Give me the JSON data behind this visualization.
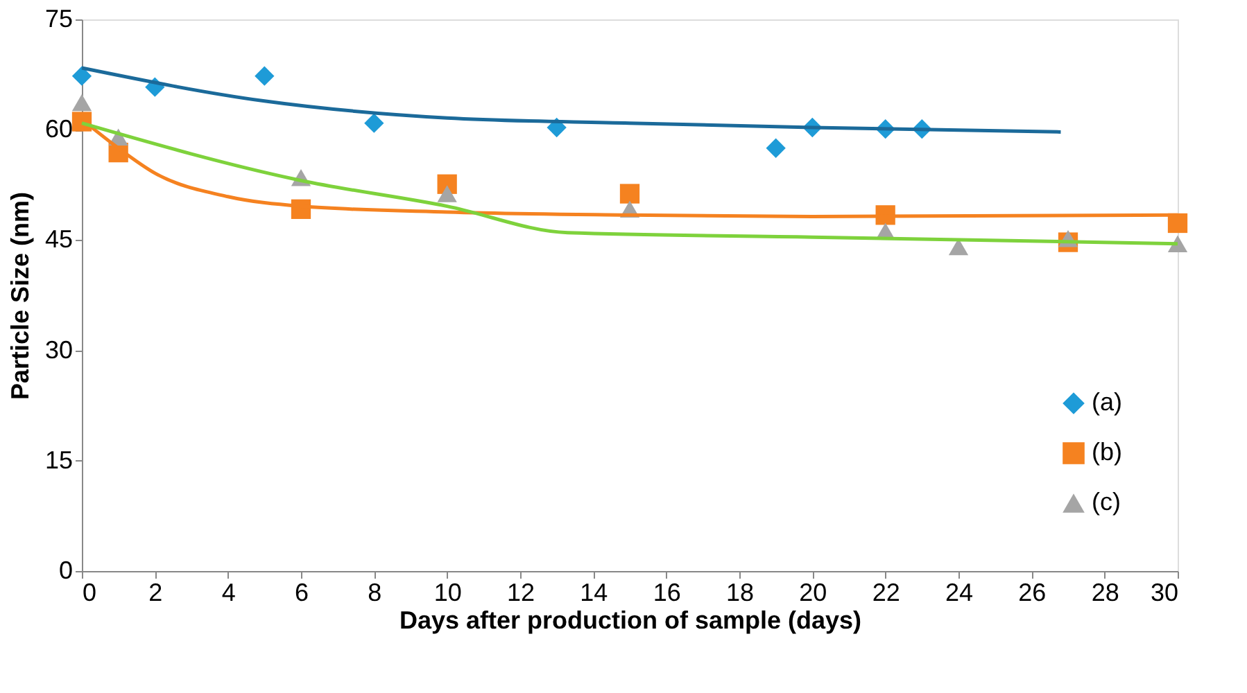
{
  "chart_data": {
    "type": "scatter",
    "xlabel": "Days after production of sample (days)",
    "ylabel": "Particle Size (nm)",
    "xlim": [
      0,
      30
    ],
    "xticks": [
      0,
      2,
      4,
      6,
      8,
      10,
      12,
      14,
      16,
      18,
      20,
      22,
      24,
      26,
      28,
      30
    ],
    "ylim": [
      0,
      75
    ],
    "yticks": [
      0,
      15,
      30,
      45,
      60,
      75
    ],
    "grid": false,
    "legend": "bottom right",
    "series": [
      {
        "name": "(a)",
        "marker": "diamond",
        "color": "#1e9bd7",
        "x": [
          0,
          2,
          5,
          8,
          13,
          19,
          20,
          22,
          23
        ],
        "values": [
          67.3,
          65.8,
          67.3,
          60.9,
          60.3,
          57.5,
          60.3,
          60.1,
          60.1
        ]
      },
      {
        "name": "(b)",
        "marker": "square",
        "color": "#f58220",
        "x": [
          0,
          1,
          6,
          10,
          15,
          22,
          27,
          30
        ],
        "values": [
          61.1,
          56.9,
          49.2,
          52.6,
          51.3,
          48.4,
          44.7,
          47.3
        ]
      },
      {
        "name": "(c)",
        "marker": "triangle",
        "color": "#a5a5a5",
        "x": [
          0,
          1,
          6,
          10,
          15,
          22,
          24,
          27,
          30
        ],
        "values": [
          63.7,
          59.0,
          53.5,
          51.3,
          49.2,
          46.2,
          44.1,
          45.2,
          44.5
        ]
      },
      {
        "type": "line",
        "marker": "none",
        "line_style": "solid",
        "color": "#1b6a9a",
        "x": [
          0,
          5,
          10,
          15,
          20,
          26.8
        ],
        "values": [
          68.4,
          63.9,
          61.6,
          60.9,
          60.3,
          59.7
        ]
      },
      {
        "type": "line",
        "marker": "none",
        "line_style": "solid",
        "color": "#f58220",
        "x": [
          0,
          1,
          2,
          4,
          6,
          10,
          15,
          20,
          30
        ],
        "values": [
          61.4,
          57.5,
          54.1,
          50.9,
          49.6,
          48.8,
          48.4,
          48.2,
          48.4
        ]
      },
      {
        "type": "line",
        "marker": "none",
        "line_style": "solid",
        "color": "#7ed23c",
        "x": [
          0,
          6,
          10,
          13.3,
          20,
          30
        ],
        "values": [
          60.9,
          53.1,
          49.6,
          46.0,
          45.4,
          44.5
        ]
      }
    ]
  }
}
